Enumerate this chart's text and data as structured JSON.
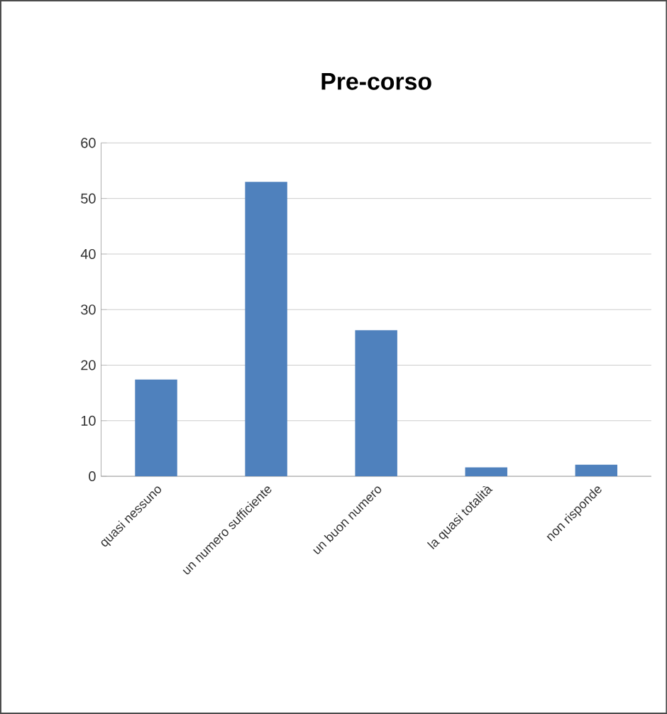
{
  "chart_data": {
    "type": "bar",
    "title": "Pre-corso",
    "categories": [
      "quasi nessuno",
      "un numero sufficiente",
      "un buon numero",
      "la quasi totalità",
      "non risponde"
    ],
    "values": [
      17.4,
      53,
      26.3,
      1.6,
      2.1
    ],
    "color": "#4f81bd",
    "ylim": [
      0,
      60
    ],
    "yticks": [
      0,
      10,
      20,
      30,
      40,
      50,
      60
    ],
    "grid": "y"
  }
}
